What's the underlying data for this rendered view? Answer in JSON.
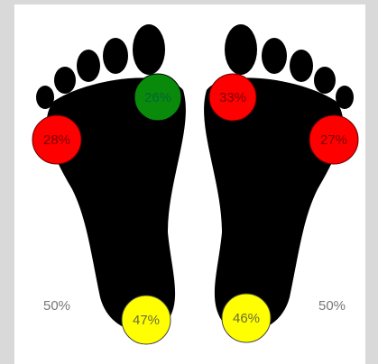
{
  "left_foot": {
    "sensors": [
      "26%",
      "28%",
      "47%"
    ],
    "total": "50%"
  },
  "right_foot": {
    "sensors": [
      "33%",
      "27%",
      "46%"
    ],
    "total": "50%"
  }
}
